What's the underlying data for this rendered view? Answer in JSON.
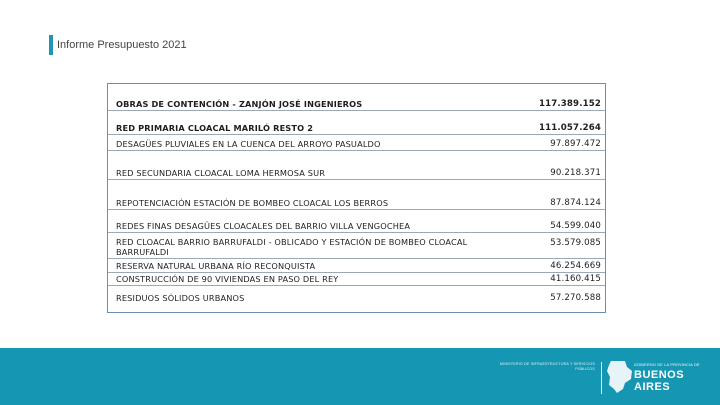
{
  "header": {
    "title": "Informe Presupuesto 2021"
  },
  "table": {
    "rows": [
      {
        "name": "OBRAS DE CONTENCIÓN - ZANJÓN JOSÉ INGENIEROS",
        "amount": "117.389.152",
        "bold": true
      },
      {
        "name": "RED PRIMARIA CLOACAL MARILÓ RESTO 2",
        "amount": "111.057.264",
        "bold": true
      },
      {
        "name": "DESAGÜES PLUVIALES EN LA CUENCA DEL ARROYO PASUALDO",
        "amount": "97.897.472",
        "bold": false
      },
      {
        "name": "RED SECUNDARIA CLOACAL LOMA HERMOSA SUR",
        "amount": "90.218.371",
        "bold": false
      },
      {
        "name": "REPOTENCIACIÓN ESTACIÓN DE BOMBEO CLOACAL LOS BERROS",
        "amount": "87.874.124",
        "bold": false
      },
      {
        "name": "REDES FINAS DESAGÜES CLOACALES DEL BARRIO VILLA VENGOCHEA",
        "amount": "54.599.040",
        "bold": false
      },
      {
        "name": "RED CLOACAL BARRIO BARRUFALDI - OBLICADO Y ESTACIÓN DE BOMBEO CLOACAL BARRUFALDI",
        "amount": "53.579.085",
        "bold": false
      },
      {
        "name": "RESERVA NATURAL URBANA RÍO RECONQUISTA",
        "amount": "46.254.669",
        "bold": false
      },
      {
        "name": "CONSTRUCCIÓN DE 90 VIVIENDAS EN PASO DEL REY",
        "amount": "41.160.415",
        "bold": false
      },
      {
        "name": "RESIDUOS SÓLIDOS URBANOS",
        "amount": "57.270.588",
        "bold": false
      }
    ]
  },
  "footer": {
    "ministry": "MINISTERIO DE INFRAESTRUCTURA Y SERVICIOS PÚBLICOS",
    "government": "GOBIERNO DE LA PROVINCIA DE",
    "province": "BUENOS AIRES",
    "map_icon": "province-map-icon",
    "color": "#1596b2",
    "accent": "#1e96b4"
  }
}
